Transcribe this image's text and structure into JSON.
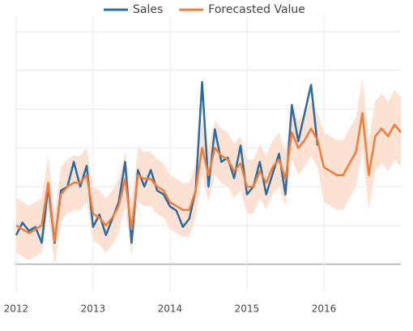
{
  "chart_data": {
    "type": "line",
    "x": [
      2012,
      2012.083,
      2012.167,
      2012.25,
      2012.333,
      2012.417,
      2012.5,
      2012.583,
      2012.667,
      2012.75,
      2012.833,
      2012.917,
      2013,
      2013.083,
      2013.167,
      2013.25,
      2013.333,
      2013.417,
      2013.5,
      2013.583,
      2013.667,
      2013.75,
      2013.833,
      2013.917,
      2014,
      2014.083,
      2014.167,
      2014.25,
      2014.333,
      2014.417,
      2014.5,
      2014.583,
      2014.667,
      2014.75,
      2014.833,
      2014.917,
      2015,
      2015.083,
      2015.167,
      2015.25,
      2015.333,
      2015.417,
      2015.5,
      2015.583,
      2015.667,
      2015.75,
      2015.833,
      2015.917,
      2016,
      2016.083,
      2016.167,
      2016.25,
      2016.333,
      2016.417,
      2016.5,
      2016.583,
      2016.667,
      2016.75,
      2016.833,
      2016.917,
      2017
    ],
    "series": [
      {
        "name": "Sales",
        "color": "#2c6b9e",
        "values": [
          0.75,
          1.07,
          0.86,
          0.96,
          0.55,
          2.0,
          0.55,
          1.9,
          2.0,
          2.64,
          2.0,
          2.54,
          0.96,
          1.28,
          0.75,
          1.17,
          1.6,
          2.64,
          0.55,
          2.43,
          2.0,
          2.43,
          1.9,
          1.8,
          1.49,
          1.38,
          0.96,
          1.17,
          1.9,
          4.7,
          2.0,
          3.48,
          2.64,
          2.75,
          2.22,
          3.06,
          1.8,
          2.0,
          2.64,
          1.8,
          2.33,
          2.85,
          1.8,
          4.11,
          3.17,
          3.9,
          4.63,
          3.06,
          null,
          null,
          null,
          null,
          null,
          null,
          null,
          null,
          null,
          null,
          null,
          null,
          null
        ]
      },
      {
        "name": "Forecasted Value",
        "color": "#f07d3c",
        "values": [
          1.0,
          0.9,
          0.8,
          0.9,
          1.0,
          2.1,
          0.6,
          1.8,
          2.0,
          2.1,
          2.1,
          2.3,
          1.3,
          1.2,
          1.0,
          1.2,
          1.5,
          2.2,
          0.9,
          2.3,
          2.2,
          2.2,
          2.0,
          1.9,
          1.6,
          1.5,
          1.4,
          1.4,
          1.9,
          3.0,
          2.3,
          3.0,
          2.8,
          2.7,
          2.4,
          2.6,
          2.0,
          2.0,
          2.4,
          2.1,
          2.5,
          2.7,
          2.2,
          3.4,
          3.0,
          3.2,
          3.5,
          3.2,
          2.5,
          2.4,
          2.3,
          2.3,
          2.6,
          2.9,
          3.9,
          2.3,
          3.3,
          3.5,
          3.3,
          3.6,
          3.4
        ]
      }
    ],
    "band": {
      "color": "#fde2d3",
      "lower": [
        0.3,
        0.2,
        0.1,
        0.2,
        0.3,
        1.4,
        -0.1,
        1.1,
        1.3,
        1.4,
        1.4,
        1.6,
        0.6,
        0.5,
        0.3,
        0.5,
        0.8,
        1.5,
        0.2,
        1.6,
        1.5,
        1.5,
        1.3,
        1.2,
        0.9,
        0.8,
        0.7,
        0.7,
        1.2,
        2.3,
        1.6,
        2.3,
        2.1,
        2.0,
        1.7,
        1.9,
        1.3,
        1.3,
        1.7,
        1.4,
        1.8,
        2.0,
        1.5,
        2.7,
        2.3,
        2.5,
        2.8,
        2.5,
        1.6,
        1.5,
        1.4,
        1.4,
        1.7,
        2.0,
        3.0,
        1.4,
        2.4,
        2.6,
        2.4,
        2.7,
        2.5
      ],
      "upper": [
        1.7,
        1.6,
        1.5,
        1.6,
        1.7,
        2.8,
        1.3,
        2.5,
        2.7,
        2.8,
        2.8,
        3.0,
        2.0,
        1.9,
        1.7,
        1.9,
        2.2,
        2.9,
        1.6,
        3.0,
        2.9,
        2.9,
        2.7,
        2.6,
        2.3,
        2.2,
        2.1,
        2.1,
        2.6,
        3.7,
        3.0,
        3.7,
        3.5,
        3.4,
        3.1,
        3.3,
        2.7,
        2.7,
        3.1,
        2.8,
        3.2,
        3.4,
        2.9,
        4.1,
        3.7,
        3.9,
        4.2,
        3.9,
        3.4,
        3.3,
        3.2,
        3.2,
        3.5,
        3.8,
        4.8,
        3.2,
        4.2,
        4.4,
        4.2,
        4.5,
        4.3
      ]
    },
    "xlim": [
      2011.98,
      2017
    ],
    "xticks": [
      2012,
      2013,
      2014,
      2015,
      2016
    ],
    "ylim": [
      -0.7,
      6.4
    ],
    "ygrid": [
      0,
      1,
      2,
      3,
      4,
      5,
      6
    ],
    "zeroline": true,
    "grid": true,
    "legend": "top"
  }
}
